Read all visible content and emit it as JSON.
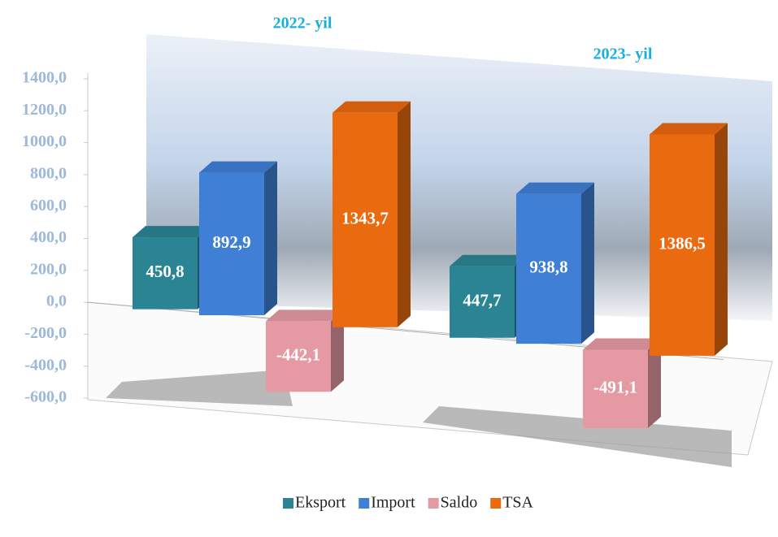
{
  "chart_data": {
    "type": "bar3d",
    "categories": [
      "2022- yil",
      "2023- yil"
    ],
    "series": [
      {
        "name": "Eksport",
        "color": "#2b8494",
        "values": [
          450.8,
          447.7
        ],
        "value_labels": [
          "450,8",
          "447,7"
        ]
      },
      {
        "name": "Import",
        "color": "#3f7fd6",
        "values": [
          892.9,
          938.8
        ],
        "value_labels": [
          "892,9",
          "938,8"
        ]
      },
      {
        "name": "Saldo",
        "color": "#e59aa3",
        "values": [
          -442.1,
          -491.1
        ],
        "value_labels": [
          "-442,1",
          "-491,1"
        ]
      },
      {
        "name": "TSA",
        "color": "#ea6a10",
        "values": [
          1343.7,
          1386.5
        ],
        "value_labels": [
          "1343,7",
          "1386,5"
        ]
      }
    ],
    "ylim": [
      -600,
      1400
    ],
    "yticks": [
      {
        "value": -600,
        "label": "-600,0"
      },
      {
        "value": -400,
        "label": "-400,0"
      },
      {
        "value": -200,
        "label": "-200,0"
      },
      {
        "value": 0,
        "label": "0,0"
      },
      {
        "value": 200,
        "label": "200,0"
      },
      {
        "value": 400,
        "label": "400,0"
      },
      {
        "value": 600,
        "label": "600,0"
      },
      {
        "value": 800,
        "label": "800,0"
      },
      {
        "value": 1000,
        "label": "1000,0"
      },
      {
        "value": 1200,
        "label": "1200,0"
      },
      {
        "value": 1400,
        "label": "1400,0"
      }
    ],
    "legend": "bottom"
  }
}
